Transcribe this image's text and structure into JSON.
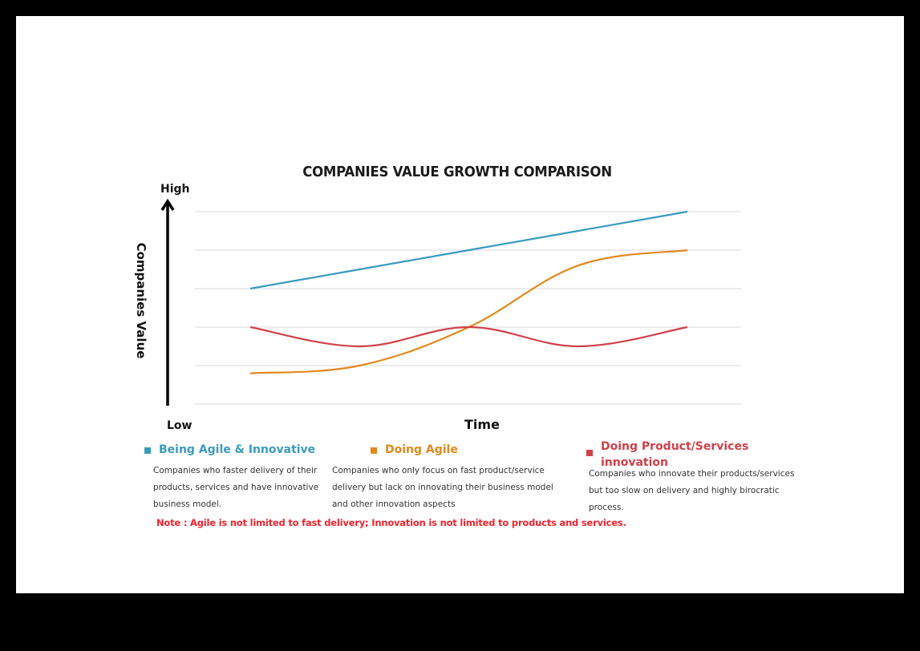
{
  "chart_data": {
    "type": "line",
    "title": "COMPANIES VALUE GROWTH COMPARISON",
    "xlabel": "Time",
    "ylabel": "Companies Value",
    "y_axis_high_label": "High",
    "y_axis_low_label": "Low",
    "x": [
      1,
      2,
      3,
      4,
      5
    ],
    "ylim": [
      0,
      5
    ],
    "grid": true,
    "legend_position": "bottom",
    "series": [
      {
        "name": "Being Agile & Innovative",
        "color": "#3a9bbf",
        "values": [
          3,
          3.5,
          4,
          4.5,
          5
        ]
      },
      {
        "name": "Doing Agile",
        "color": "#e08a1e",
        "values": [
          0.8,
          1,
          2,
          3.6,
          4
        ]
      },
      {
        "name": "Doing Product/Services innovation",
        "color": "#d0414a",
        "values": [
          2,
          1.5,
          2,
          1.5,
          2
        ]
      }
    ]
  },
  "legend": [
    {
      "label": "Being Agile & Innovative",
      "color": "#3a9bbf",
      "description": [
        "Companies who faster delivery of their",
        "products, services and have innovative",
        "business model."
      ]
    },
    {
      "label": "Doing Agile",
      "color": "#e08a1e",
      "description": [
        "Companies who only focus on  fast product/service",
        "delivery but lack on innovating their business model",
        "and other innovation aspects"
      ]
    },
    {
      "label_lines": [
        "Doing Product/Services",
        "innovation"
      ],
      "color": "#d0414a",
      "description": [
        "Companies who innovate their products/services",
        "but too slow on delivery and highly birocratic",
        "process."
      ]
    }
  ],
  "note": "Note : Agile is not limited to fast delivery; Innovation is not limited to products and services."
}
